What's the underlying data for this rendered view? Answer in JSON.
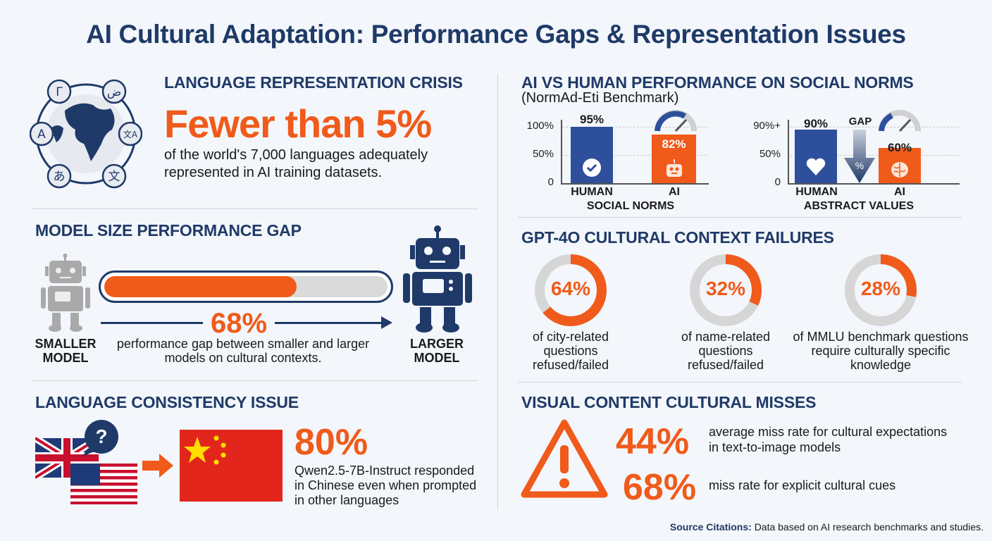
{
  "title": "AI Cultural Adaptation: Performance Gaps & Representation Issues",
  "language_representation": {
    "heading": "LANGUAGE REPRESENTATION CRISIS",
    "stat": "Fewer than 5%",
    "description": "of the world's 7,000 languages adequately represented in AI training datasets.",
    "globe_glyphs": [
      "Γ",
      "ض",
      "A",
      "文A",
      "あ",
      "文"
    ]
  },
  "model_size_gap": {
    "heading": "MODEL SIZE PERFORMANCE GAP",
    "stat": "68%",
    "progress_percent": 68,
    "description": "performance gap between smaller and larger models on cultural contexts.",
    "smaller_label": "SMALLER MODEL",
    "larger_label": "LARGER MODEL"
  },
  "language_consistency": {
    "heading": "LANGUAGE CONSISTENCY ISSUE",
    "stat": "80%",
    "description": "Qwen2.5-7B-Instruct responded in Chinese even when prompted in other languages",
    "bubble_glyph": "?"
  },
  "social_norms": {
    "heading": "AI VS HUMAN PERFORMANCE ON SOCIAL NORMS",
    "subheading": "(NormAd-Eti Benchmark)",
    "charts": [
      {
        "ticks": [
          "100%",
          "50%",
          "0"
        ],
        "bars": [
          {
            "label": "HUMAN",
            "value_label": "95%",
            "value": 95,
            "color": "#2d4f9c"
          },
          {
            "label": "AI",
            "value_label": "82%",
            "value": 82,
            "color": "#f05a1a"
          }
        ],
        "category": "SOCIAL NORMS"
      },
      {
        "ticks": [
          "90%+",
          "50%",
          "0"
        ],
        "bars": [
          {
            "label": "HUMAN",
            "value_label": "90%",
            "value": 90,
            "color": "#2d4f9c"
          },
          {
            "label": "AI",
            "value_label": "60%",
            "value": 60,
            "color": "#f05a1a"
          }
        ],
        "gap_label": "GAP",
        "gap_glyph": "%",
        "category": "ABSTRACT VALUES"
      }
    ]
  },
  "gpt4o_failures": {
    "heading": "GPT-4O CULTURAL CONTEXT FAILURES",
    "items": [
      {
        "value_label": "64%",
        "value": 64,
        "description": "of city-related questions refused/failed"
      },
      {
        "value_label": "32%",
        "value": 32,
        "description": "of name-related questions refused/failed"
      },
      {
        "value_label": "28%",
        "value": 28,
        "description": "of MMLU benchmark questions require culturally specific knowledge"
      }
    ]
  },
  "visual_misses": {
    "heading": "VISUAL CONTENT CULTURAL MISSES",
    "items": [
      {
        "stat": "44%",
        "description": "average miss rate for cultural expectations in text-to-image models"
      },
      {
        "stat": "68%",
        "description": "miss rate for explicit cultural cues"
      }
    ]
  },
  "source": {
    "label": "Source Citations:",
    "text": "Data based on AI research benchmarks and studies."
  },
  "colors": {
    "navy": "#1f3a68",
    "orange": "#f05a1a",
    "bar_blue": "#2d4f9c",
    "gray": "#d6d6d6"
  }
}
